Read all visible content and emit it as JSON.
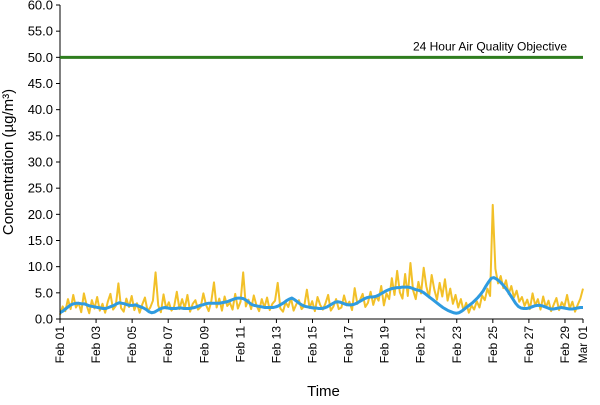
{
  "chart_data": {
    "type": "line",
    "title": "",
    "xlabel": "Time",
    "ylabel": "Concentration (µg/m³)",
    "ylim": [
      0,
      60
    ],
    "y_ticks": [
      "0.0",
      "5.0",
      "10.0",
      "15.0",
      "20.0",
      "25.0",
      "30.0",
      "35.0",
      "40.0",
      "45.0",
      "50.0",
      "55.0",
      "60.0"
    ],
    "x_range": [
      "2016-02-01",
      "2016-03-01"
    ],
    "x_ticks": [
      "Feb 01",
      "Feb 03",
      "Feb 05",
      "Feb 07",
      "Feb 09",
      "Feb 11",
      "Feb 13",
      "Feb 15",
      "Feb 17",
      "Feb 19",
      "Feb 21",
      "Feb 23",
      "Feb 25",
      "Feb 27",
      "Feb 29",
      "Mar 01"
    ],
    "grid": false,
    "colors": {
      "hourly": "#f2c028",
      "rolling": "#2f9be0",
      "objective": "#2e7d1e"
    },
    "reference_line": {
      "value": 50,
      "label": "24 Hour Air Quality Objective"
    },
    "series": [
      {
        "values": [
          0.8,
          2.4,
          1.5,
          3.8,
          1.9,
          4.6,
          2.2,
          3.1,
          1.3,
          4.9,
          2.7,
          1.1,
          3.6,
          2.0,
          4.2,
          1.6,
          2.9,
          1.2,
          3.3,
          4.8,
          1.8,
          2.5,
          6.8,
          2.1,
          1.4,
          3.9,
          2.3,
          4.4,
          1.7,
          3.0,
          1.2,
          2.8,
          4.1,
          1.5,
          2.2,
          3.5,
          8.9,
          2.6,
          1.3,
          4.7,
          2.0,
          3.2,
          1.6,
          2.4,
          5.2,
          1.9,
          3.8,
          2.1,
          4.6,
          1.4,
          2.9,
          3.6,
          1.8,
          2.3,
          4.9,
          2.7,
          1.5,
          3.4,
          7.0,
          2.2,
          3.9,
          1.6,
          4.3,
          2.5,
          3.1,
          1.8,
          4.8,
          2.0,
          3.3,
          8.9,
          2.4,
          3.7,
          1.9,
          4.5,
          2.6,
          1.5,
          3.8,
          2.2,
          4.1,
          1.7,
          2.9,
          3.5,
          6.9,
          2.0,
          1.4,
          3.2,
          2.3,
          4.0,
          1.6,
          2.8,
          3.6,
          1.9,
          2.5,
          5.6,
          2.1,
          3.4,
          1.5,
          4.2,
          2.7,
          1.8,
          3.0,
          4.6,
          1.6,
          2.4,
          3.8,
          1.9,
          2.2,
          4.5,
          2.6,
          3.3,
          1.7,
          5.9,
          2.9,
          3.6,
          4.8,
          2.3,
          3.1,
          5.2,
          2.7,
          4.4,
          3.5,
          6.3,
          2.6,
          4.9,
          3.8,
          7.8,
          4.6,
          9.2,
          5.1,
          3.9,
          8.6,
          4.4,
          10.7,
          5.5,
          3.8,
          7.1,
          4.9,
          9.8,
          6.2,
          4.1,
          8.4,
          5.6,
          3.7,
          6.9,
          4.3,
          7.6,
          3.5,
          5.8,
          2.9,
          4.6,
          2.2,
          3.8,
          1.6,
          3.1,
          1.2,
          2.6,
          1.8,
          3.4,
          2.2,
          4.5,
          3.6,
          5.8,
          4.4,
          21.8,
          9.6,
          6.8,
          8.2,
          5.9,
          7.4,
          4.8,
          6.3,
          4.1,
          5.4,
          3.3,
          4.2,
          2.5,
          3.7,
          1.9,
          4.9,
          2.6,
          3.8,
          1.8,
          4.3,
          2.2,
          3.5,
          1.5,
          2.8,
          4.0,
          1.7,
          3.2,
          2.4,
          4.6,
          2.0,
          3.3,
          1.4,
          2.7,
          3.9,
          5.8
        ]
      },
      {
        "values": [
          1.2,
          1.5,
          1.9,
          2.3,
          2.7,
          2.9,
          3.0,
          3.0,
          2.9,
          2.9,
          2.7,
          2.5,
          2.4,
          2.3,
          2.2,
          2.1,
          2.0,
          2.0,
          2.2,
          2.4,
          2.6,
          2.9,
          3.1,
          3.0,
          2.9,
          2.7,
          2.6,
          2.6,
          2.7,
          2.5,
          2.3,
          2.1,
          1.8,
          1.4,
          1.2,
          1.3,
          1.6,
          1.9,
          2.1,
          2.2,
          2.1,
          2.0,
          2.0,
          2.0,
          2.1,
          2.1,
          2.0,
          2.0,
          2.0,
          2.1,
          2.2,
          2.4,
          2.6,
          2.7,
          2.9,
          3.0,
          3.0,
          3.0,
          3.0,
          3.0,
          3.1,
          3.2,
          3.3,
          3.5,
          3.7,
          3.9,
          4.0,
          4.0,
          3.9,
          3.6,
          3.2,
          2.8,
          2.6,
          2.5,
          2.4,
          2.3,
          2.2,
          2.2,
          2.2,
          2.2,
          2.3,
          2.5,
          2.8,
          3.1,
          3.5,
          3.8,
          4.0,
          3.7,
          3.3,
          2.9,
          2.6,
          2.4,
          2.3,
          2.2,
          2.1,
          2.1,
          2.0,
          2.0,
          2.1,
          2.3,
          2.6,
          2.9,
          3.2,
          3.3,
          3.2,
          3.0,
          2.8,
          2.7,
          2.7,
          2.8,
          3.0,
          3.3,
          3.6,
          3.9,
          4.1,
          4.2,
          4.2,
          4.3,
          4.5,
          4.8,
          5.1,
          5.4,
          5.6,
          5.8,
          5.9,
          6.0,
          6.0,
          6.1,
          6.1,
          6.1,
          6.0,
          5.8,
          5.6,
          5.5,
          5.3,
          5.0,
          4.6,
          4.2,
          3.8,
          3.4,
          3.0,
          2.6,
          2.2,
          1.9,
          1.6,
          1.4,
          1.2,
          1.1,
          1.2,
          1.5,
          1.9,
          2.3,
          2.7,
          3.1,
          3.6,
          4.1,
          4.7,
          5.4,
          6.3,
          7.1,
          7.8,
          7.9,
          7.6,
          7.2,
          6.7,
          6.1,
          5.4,
          4.6,
          3.8,
          3.0,
          2.4,
          2.1,
          2.0,
          2.0,
          2.1,
          2.3,
          2.5,
          2.6,
          2.6,
          2.5,
          2.3,
          2.1,
          1.9,
          1.9,
          2.0,
          2.1,
          2.2,
          2.1,
          2.0,
          1.9,
          1.9,
          2.0,
          2.1,
          2.2,
          2.2
        ]
      }
    ]
  }
}
